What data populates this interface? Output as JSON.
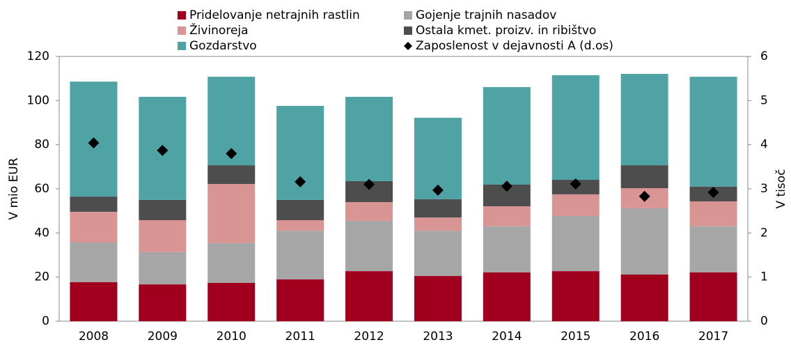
{
  "chart_data": {
    "type": "bar",
    "stacked": true,
    "categories": [
      "2008",
      "2009",
      "2010",
      "2011",
      "2012",
      "2013",
      "2014",
      "2015",
      "2016",
      "2017"
    ],
    "series": [
      {
        "name": "Pridelovanje netrajnih rastlin",
        "color": "#a0001e",
        "values": [
          17.7,
          16.7,
          17.4,
          19.0,
          22.7,
          20.5,
          22.1,
          22.7,
          21.2,
          22.1
        ]
      },
      {
        "name": "Gojenje trajnih nasadov",
        "color": "#a6a6a6",
        "values": [
          18.0,
          14.6,
          18.0,
          22.0,
          22.8,
          20.5,
          20.9,
          25.0,
          30.0,
          20.9
        ]
      },
      {
        "name": "Živinoreja",
        "color": "#d99594",
        "values": [
          13.9,
          14.5,
          26.8,
          4.8,
          8.5,
          6.0,
          9.1,
          9.8,
          9.1,
          11.3
        ]
      },
      {
        "name": "Ostala kmet. proizv. in ribištvo",
        "color": "#4d4d4d",
        "values": [
          6.9,
          9.2,
          8.5,
          9.2,
          9.5,
          8.3,
          9.8,
          6.6,
          10.4,
          6.7
        ]
      },
      {
        "name": "Gozdarstvo",
        "color": "#4fa3a5",
        "values": [
          52.1,
          46.7,
          40.1,
          42.6,
          38.2,
          36.9,
          44.2,
          47.4,
          41.4,
          49.8
        ]
      },
      {
        "name": "Zaposlenost v dejavnosti A (d.os)",
        "color": "#000000",
        "axis": "y2",
        "marker": "diamond",
        "values": [
          4.04,
          3.87,
          3.8,
          3.16,
          3.1,
          2.97,
          3.06,
          3.11,
          2.83,
          2.92
        ]
      }
    ],
    "ylabel": "V mio EUR",
    "y2label": "V tisoč",
    "ylim": [
      0,
      120
    ],
    "yticks": [
      0,
      20,
      40,
      60,
      80,
      100,
      120
    ],
    "y2lim": [
      0,
      6
    ],
    "y2ticks": [
      0,
      1,
      2,
      3,
      4,
      5,
      6
    ]
  }
}
